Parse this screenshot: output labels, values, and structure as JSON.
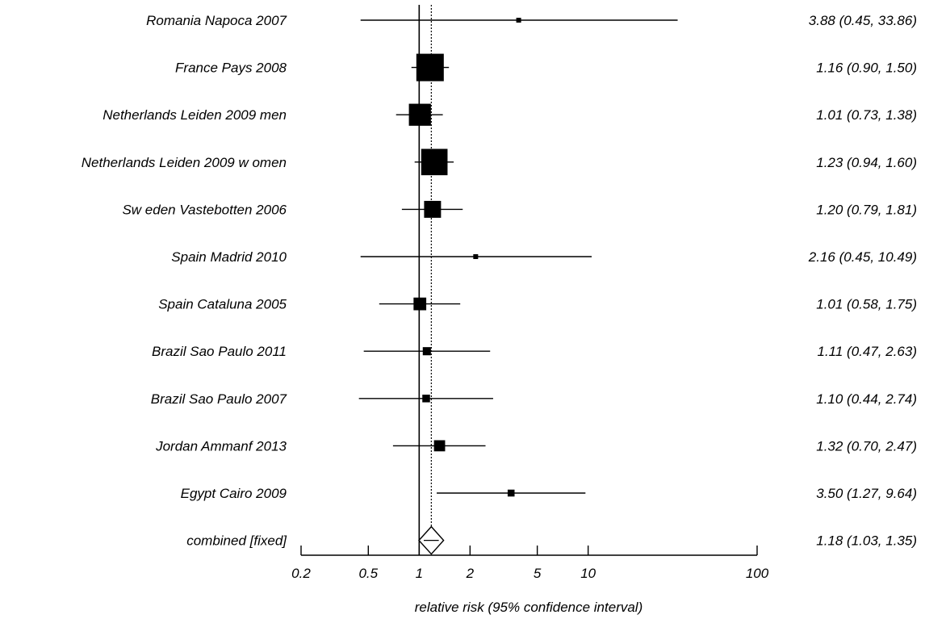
{
  "chart_data": {
    "type": "forest",
    "xlabel": "relative risk (95% confidence interval)",
    "xscale": "log",
    "xlim": [
      0.2,
      100
    ],
    "xticks": [
      "0.2",
      "0.5",
      "1",
      "2",
      "5",
      "10",
      "100"
    ],
    "reference_line": 1,
    "pooled_line": 1.18,
    "grid": false,
    "studies": [
      {
        "label": "Romania Napoca 2007",
        "estimate": 3.88,
        "lower": 0.45,
        "upper": 33.86,
        "text": "3.88 (0.45, 33.86)"
      },
      {
        "label": "France Pays 2008",
        "estimate": 1.16,
        "lower": 0.9,
        "upper": 1.5,
        "text": "1.16 (0.90, 1.50)"
      },
      {
        "label": "Netherlands Leiden 2009 men",
        "estimate": 1.01,
        "lower": 0.73,
        "upper": 1.38,
        "text": "1.01 (0.73, 1.38)"
      },
      {
        "label": "Netherlands Leiden 2009 w omen",
        "estimate": 1.23,
        "lower": 0.94,
        "upper": 1.6,
        "text": "1.23 (0.94, 1.60)"
      },
      {
        "label": "Sw eden Vastebotten 2006",
        "estimate": 1.2,
        "lower": 0.79,
        "upper": 1.81,
        "text": "1.20 (0.79, 1.81)"
      },
      {
        "label": "Spain Madrid 2010",
        "estimate": 2.16,
        "lower": 0.45,
        "upper": 10.49,
        "text": "2.16 (0.45, 10.49)"
      },
      {
        "label": "Spain Cataluna 2005",
        "estimate": 1.01,
        "lower": 0.58,
        "upper": 1.75,
        "text": "1.01 (0.58, 1.75)"
      },
      {
        "label": "Brazil Sao Paulo 2011",
        "estimate": 1.11,
        "lower": 0.47,
        "upper": 2.63,
        "text": "1.11 (0.47, 2.63)"
      },
      {
        "label": "Brazil Sao Paulo 2007",
        "estimate": 1.1,
        "lower": 0.44,
        "upper": 2.74,
        "text": "1.10 (0.44, 2.74)"
      },
      {
        "label": "Jordan Ammanf 2013",
        "estimate": 1.32,
        "lower": 0.7,
        "upper": 2.47,
        "text": "1.32 (0.70, 2.47)"
      },
      {
        "label": "Egypt Cairo 2009",
        "estimate": 3.5,
        "lower": 1.27,
        "upper": 9.64,
        "text": "3.50 (1.27, 9.64)"
      }
    ],
    "combined": {
      "label": "combined [fixed]",
      "estimate": 1.18,
      "lower": 1.03,
      "upper": 1.35,
      "text": "1.18 (1.03, 1.35)"
    }
  }
}
